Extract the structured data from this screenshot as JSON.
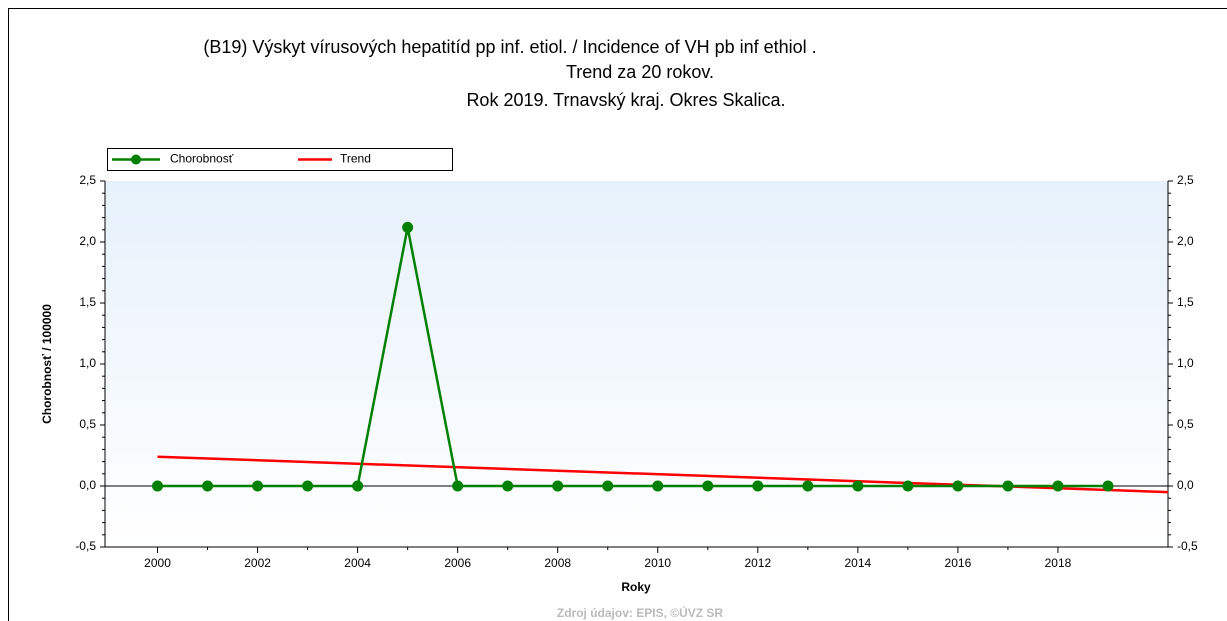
{
  "chart_data": {
    "type": "line",
    "title": [
      "(B19) Výskyt vírusových hepatitíd pp inf. etiol. / Incidence of VH pb inf ethiol .",
      "Trend za 20 rokov.",
      "Rok 2019. Trnavský kraj. Okres Skalica."
    ],
    "y_label": "Chorobnosť / 100000",
    "x_label": "Roky",
    "source": "Zdroj údajov: EPIS, ©ÚVZ SR",
    "xlim": [
      1998.95,
      2020.2
    ],
    "xticks": [
      2000,
      2002,
      2004,
      2006,
      2008,
      2010,
      2012,
      2014,
      2016,
      2018
    ],
    "ylim": [
      -0.5,
      2.5
    ],
    "yticks": [
      {
        "value": -0.5,
        "label": "-0,5"
      },
      {
        "value": 0,
        "label": "0,0"
      },
      {
        "value": 0.5,
        "label": "0,5"
      },
      {
        "value": 1,
        "label": "1,0"
      },
      {
        "value": 1.5,
        "label": "1,5"
      },
      {
        "value": 2,
        "label": "2,0"
      },
      {
        "value": 2.5,
        "label": "2,5"
      }
    ],
    "y2lim": [
      -0.5,
      2.5
    ],
    "y2ticks": [
      {
        "value": -0.5,
        "label": "-0,5"
      },
      {
        "value": 0,
        "label": "0,0"
      },
      {
        "value": 0.5,
        "label": "0,5"
      },
      {
        "value": 1,
        "label": "1,0"
      },
      {
        "value": 1.5,
        "label": "1,5"
      },
      {
        "value": 2,
        "label": "2,0"
      },
      {
        "value": 2.5,
        "label": "2,5"
      }
    ],
    "series": [
      {
        "name": "Chorobnosť",
        "color": "#008000",
        "markers": true,
        "x": [
          2000,
          2001,
          2002,
          2003,
          2004,
          2005,
          2006,
          2007,
          2008,
          2009,
          2010,
          2011,
          2012,
          2013,
          2014,
          2015,
          2016,
          2017,
          2018,
          2019
        ],
        "values": [
          0,
          0,
          0,
          0,
          0,
          2.12,
          0,
          0,
          0,
          0,
          0,
          0,
          0,
          0,
          0,
          0,
          0,
          0,
          0,
          0
        ]
      },
      {
        "name": "Trend",
        "color": "#ff0000",
        "markers": false,
        "x": [
          2000,
          2020.2
        ],
        "values": [
          0.24,
          -0.05
        ]
      }
    ]
  }
}
